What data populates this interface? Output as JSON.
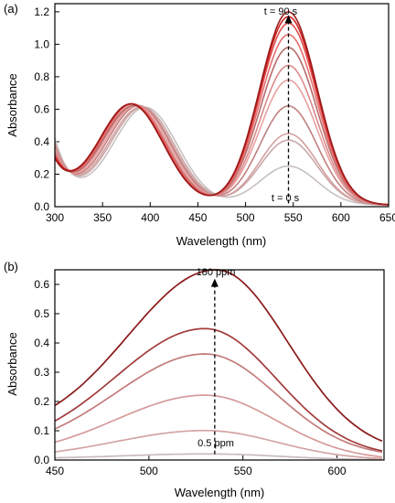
{
  "chart_data": [
    {
      "panel_label": "(a)",
      "type": "line",
      "xlabel": "Wavelength (nm)",
      "ylabel": "Absorbance",
      "xlim": [
        300,
        650
      ],
      "ylim": [
        0,
        1.25
      ],
      "xticks": [
        300,
        350,
        400,
        450,
        500,
        550,
        600,
        650
      ],
      "yticks": [
        0.0,
        0.2,
        0.4,
        0.6,
        0.8,
        1.0,
        1.2
      ],
      "tick_labels_y": [
        "0.0",
        "0.2",
        "0.4",
        "0.6",
        "0.8",
        "1.0",
        "1.2"
      ],
      "grid": false,
      "annotations": {
        "top_label": "t = 90 s",
        "bottom_label": "t = 0 s",
        "arrow_x": 545,
        "arrow_from": 0.02,
        "arrow_to": 1.18
      },
      "series": [
        {
          "color": "#c8c0c0",
          "peak1_x": 395,
          "peak1_y": 0.6,
          "peak2_x": 545,
          "peak2_y": 0.24,
          "base_y": 0.4
        },
        {
          "color": "#c9a8a8",
          "peak1_x": 392,
          "peak1_y": 0.6,
          "peak2_x": 545,
          "peak2_y": 0.4,
          "base_y": 0.38
        },
        {
          "color": "#d4a0a0",
          "peak1_x": 390,
          "peak1_y": 0.6,
          "peak2_x": 545,
          "peak2_y": 0.44,
          "base_y": 0.36
        },
        {
          "color": "#c08080",
          "peak1_x": 388,
          "peak1_y": 0.61,
          "peak2_x": 545,
          "peak2_y": 0.61,
          "base_y": 0.34
        },
        {
          "color": "#e8a0a0",
          "peak1_x": 386,
          "peak1_y": 0.61,
          "peak2_x": 545,
          "peak2_y": 0.77,
          "base_y": 0.32
        },
        {
          "color": "#d98a8a",
          "peak1_x": 384,
          "peak1_y": 0.61,
          "peak2_x": 545,
          "peak2_y": 0.86,
          "base_y": 0.3
        },
        {
          "color": "#b86a6a",
          "peak1_x": 383,
          "peak1_y": 0.61,
          "peak2_x": 545,
          "peak2_y": 0.97,
          "base_y": 0.29
        },
        {
          "color": "#e57070",
          "peak1_x": 382,
          "peak1_y": 0.62,
          "peak2_x": 545,
          "peak2_y": 1.05,
          "base_y": 0.28
        },
        {
          "color": "#e05050",
          "peak1_x": 381,
          "peak1_y": 0.62,
          "peak2_x": 545,
          "peak2_y": 1.12,
          "base_y": 0.27
        },
        {
          "color": "#d02020",
          "peak1_x": 380,
          "peak1_y": 0.62,
          "peak2_x": 545,
          "peak2_y": 1.16,
          "base_y": 0.26
        },
        {
          "color": "#9b1b1b",
          "peak1_x": 380,
          "peak1_y": 0.62,
          "peak2_x": 545,
          "peak2_y": 1.19,
          "base_y": 0.25
        }
      ]
    },
    {
      "panel_label": "(b)",
      "type": "line",
      "xlabel": "Wavelength (nm)",
      "ylabel": "Absorbance",
      "xlim": [
        450,
        625
      ],
      "ylim": [
        0,
        0.65
      ],
      "xticks": [
        450,
        500,
        550,
        600
      ],
      "yticks": [
        0.0,
        0.1,
        0.2,
        0.3,
        0.4,
        0.5,
        0.6
      ],
      "tick_labels_y": [
        "0.0",
        "0.1",
        "0.2",
        "0.3",
        "0.4",
        "0.5",
        "0.6"
      ],
      "grid": false,
      "annotations": {
        "top_label": "180 ppm",
        "bottom_label": "0.5 ppm",
        "arrow_x": 535,
        "arrow_from": 0.02,
        "arrow_to": 0.62
      },
      "series": [
        {
          "color": "#c9bcbc",
          "peak_x": 532,
          "peak_y": 0.02,
          "start_y": 0.01,
          "end_y": 0.0
        },
        {
          "color": "#d3a5a5",
          "peak_x": 530,
          "peak_y": 0.1,
          "start_y": 0.01,
          "end_y": 0.0
        },
        {
          "color": "#d79a9a",
          "peak_x": 530,
          "peak_y": 0.22,
          "start_y": 0.02,
          "end_y": 0.0
        },
        {
          "color": "#c47b7b",
          "peak_x": 530,
          "peak_y": 0.35,
          "start_y": 0.03,
          "end_y": 0.01
        },
        {
          "color": "#a33b3b",
          "peak_x": 530,
          "peak_y": 0.435,
          "start_y": 0.05,
          "end_y": 0.01
        },
        {
          "color": "#8b1a1a",
          "peak_x": 536,
          "peak_y": 0.62,
          "start_y": 0.14,
          "end_y": 0.02
        }
      ]
    }
  ]
}
